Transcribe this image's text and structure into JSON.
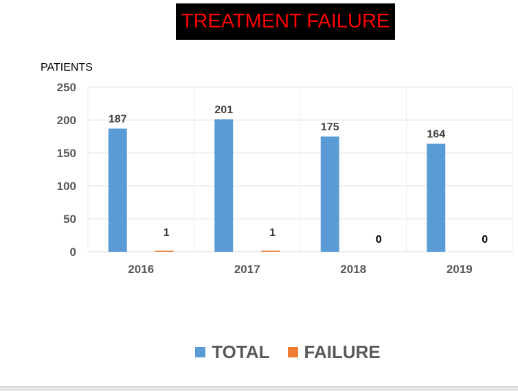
{
  "chart_data": {
    "type": "bar",
    "title": "TREATMENT FAILURE",
    "ylabel": "PATIENTS",
    "xlabel": "",
    "categories": [
      "2016",
      "2017",
      "2018",
      "2019"
    ],
    "yticks": [
      0,
      50,
      100,
      150,
      200,
      250
    ],
    "ylim": [
      0,
      250
    ],
    "grid": true,
    "legend_position": "bottom",
    "series": [
      {
        "name": "TOTAL",
        "values": [
          187,
          201,
          175,
          164
        ],
        "color": "#5b9bd5"
      },
      {
        "name": "FAILURE",
        "values": [
          1,
          1,
          0,
          0
        ],
        "color": "#ed7d31"
      }
    ]
  }
}
